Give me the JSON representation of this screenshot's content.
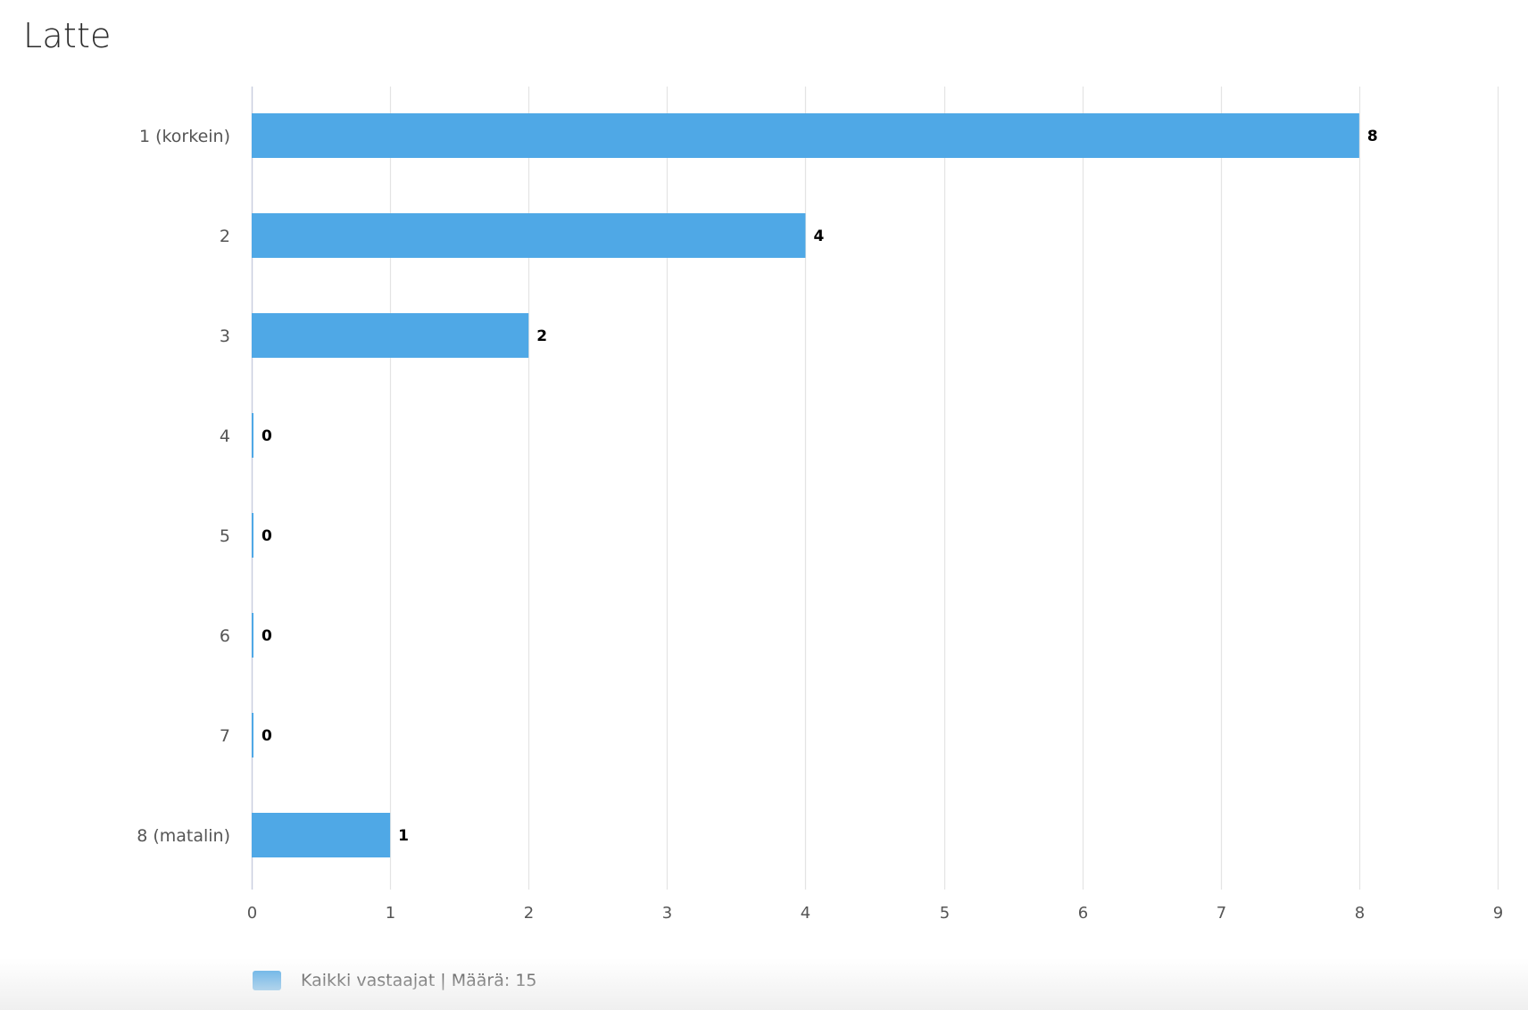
{
  "chart_data": {
    "type": "bar",
    "orientation": "horizontal",
    "title": "Latte",
    "categories": [
      "1 (korkein)",
      "2",
      "3",
      "4",
      "5",
      "6",
      "7",
      "8 (matalin)"
    ],
    "series": [
      {
        "name": "Kaikki vastaajat | Määrä: 15",
        "values": [
          8,
          4,
          2,
          0,
          0,
          0,
          0,
          1
        ],
        "color": "#4fa8e6"
      }
    ],
    "xlim": [
      0,
      9
    ],
    "xticks": [
      "0",
      "1",
      "2",
      "3",
      "4",
      "5",
      "6",
      "7",
      "8",
      "9"
    ],
    "grid": true,
    "data_labels": true,
    "legend_position": "bottom-left"
  }
}
